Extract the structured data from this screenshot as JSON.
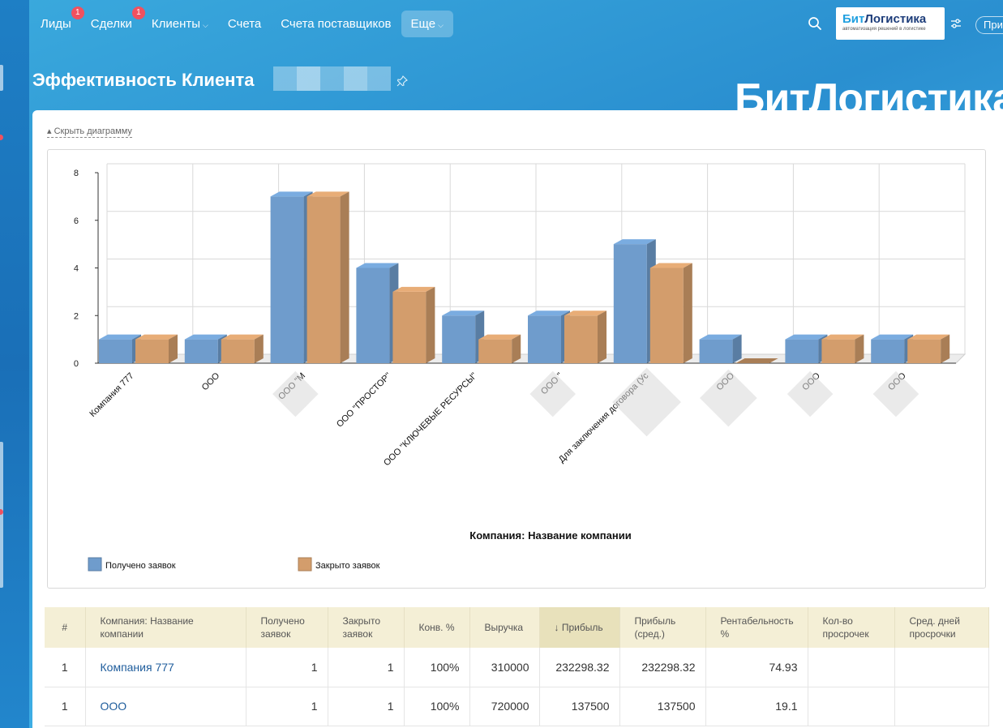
{
  "nav": {
    "items": [
      {
        "label": "Лиды",
        "badge": "1",
        "caret": false
      },
      {
        "label": "Сделки",
        "badge": "1",
        "caret": false
      },
      {
        "label": "Клиенты",
        "badge": "",
        "caret": true
      },
      {
        "label": "Счета",
        "badge": "",
        "caret": false
      },
      {
        "label": "Счета поставщиков",
        "badge": "",
        "caret": false
      },
      {
        "label": "Еще",
        "badge": "",
        "caret": true,
        "active": true
      }
    ],
    "invite_label": "Пригласить"
  },
  "logo": {
    "part1": "Бит",
    "part2": "Логистика",
    "tagline": "автоматизация решений в логистике"
  },
  "page": {
    "title": "Эффективность Клиента",
    "brand_watermark": "БитЛогистика",
    "toggle_chart": "Скрыть диаграмму"
  },
  "chart_data": {
    "type": "bar",
    "categories": [
      "Компания 777",
      "ООО",
      "ООО \"М",
      "ООО \"ПРОСТОР\"",
      "ООО \"КЛЮЧЕВЫЕ РЕСУРСЫ\"",
      "ООО \"",
      "Для заключения договора (Ус",
      "ООО",
      "ООО",
      "ООО"
    ],
    "series": [
      {
        "name": "Получено заявок",
        "values": [
          1,
          1,
          7,
          4,
          2,
          2,
          5,
          1,
          1,
          1
        ],
        "color": "#6f9ccc"
      },
      {
        "name": "Закрыто заявок",
        "values": [
          1,
          1,
          7,
          3,
          1,
          2,
          4,
          0,
          1,
          1
        ],
        "color": "#d39d6c"
      }
    ],
    "xlabel": "Компания: Название компании",
    "ylabel": "",
    "ylim": [
      0,
      8
    ],
    "yticks": [
      0,
      2,
      4,
      6,
      8
    ],
    "grid": true,
    "legend_position": "bottom-left"
  },
  "table": {
    "headers": [
      "#",
      "Компания: Название компании",
      "Получено заявок",
      "Закрыто заявок",
      "Конв. %",
      "Выручка",
      "↓ Прибыль",
      "Прибыль (сред.)",
      "Рентабельность %",
      "Кол-во просрочек",
      "Сред. дней просрочки"
    ],
    "sorted_column": 6,
    "rows": [
      [
        "1",
        "Компания 777",
        "1",
        "1",
        "100%",
        "310000",
        "232298.32",
        "232298.32",
        "74.93",
        "",
        ""
      ],
      [
        "1",
        "ООО",
        "1",
        "1",
        "100%",
        "720000",
        "137500",
        "137500",
        "19.1",
        "",
        ""
      ]
    ]
  }
}
